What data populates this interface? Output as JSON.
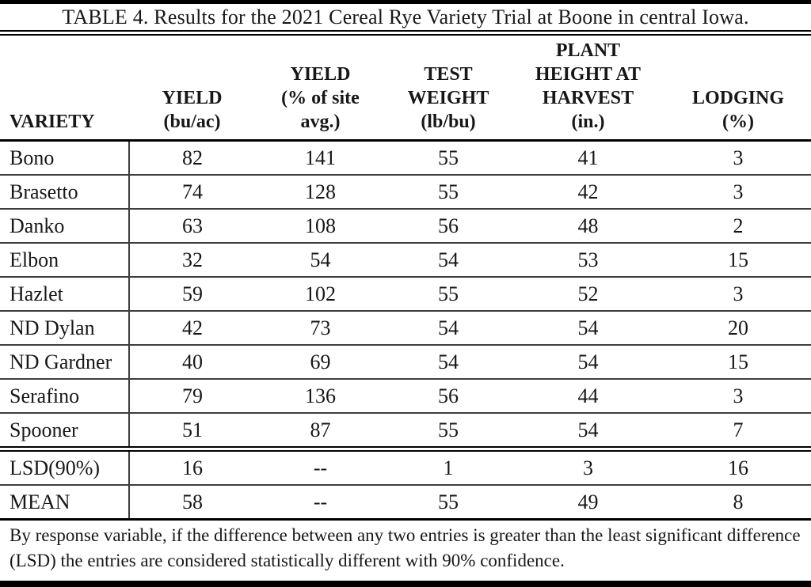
{
  "table": {
    "title": "TABLE 4. Results for the 2021 Cereal Rye Variety Trial at Boone in central Iowa.",
    "columns": {
      "variety": "VARIETY",
      "yield": "YIELD\n(bu/ac)",
      "yield_pct": "YIELD\n(% of site\navg.)",
      "test_weight": "TEST\nWEIGHT\n(lb/bu)",
      "plant_height": "PLANT\nHEIGHT AT\nHARVEST\n(in.)",
      "lodging": "LODGING\n(%)"
    },
    "rows": [
      {
        "variety": "Bono",
        "values": [
          "82",
          "141",
          "55",
          "41",
          "3"
        ]
      },
      {
        "variety": "Brasetto",
        "values": [
          "74",
          "128",
          "55",
          "42",
          "3"
        ]
      },
      {
        "variety": "Danko",
        "values": [
          "63",
          "108",
          "56",
          "48",
          "2"
        ]
      },
      {
        "variety": "Elbon",
        "values": [
          "32",
          "54",
          "54",
          "53",
          "15"
        ]
      },
      {
        "variety": "Hazlet",
        "values": [
          "59",
          "102",
          "55",
          "52",
          "3"
        ]
      },
      {
        "variety": "ND Dylan",
        "values": [
          "42",
          "73",
          "54",
          "54",
          "20"
        ]
      },
      {
        "variety": "ND Gardner",
        "values": [
          "40",
          "69",
          "54",
          "54",
          "15"
        ]
      },
      {
        "variety": "Serafino",
        "values": [
          "79",
          "136",
          "56",
          "44",
          "3"
        ]
      },
      {
        "variety": "Spooner",
        "values": [
          "51",
          "87",
          "55",
          "54",
          "7"
        ]
      }
    ],
    "summary_rows": [
      {
        "variety": "LSD(90%)",
        "values": [
          "16",
          "--",
          "1",
          "3",
          "16"
        ]
      },
      {
        "variety": "MEAN",
        "values": [
          "58",
          "--",
          "55",
          "49",
          "8"
        ]
      }
    ],
    "footnote": "By response variable, if the difference between any two entries is greater than the least significant difference (LSD) the entries are considered statistically different with 90% confidence.",
    "colors": {
      "ink": "#171717",
      "rule": "#000000",
      "row_rule": "#3d3d3d"
    }
  }
}
